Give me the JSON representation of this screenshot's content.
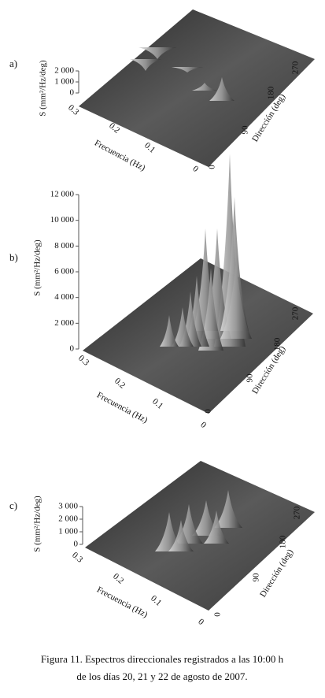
{
  "panels": [
    {
      "label": "a)",
      "z_label": "S (mm²/Hz/deg)",
      "z_ticks": [
        "2 000",
        "1 000",
        "0"
      ],
      "freq_label": "Frecuencia (Hz)",
      "freq_ticks": [
        "0.3",
        "0.2",
        "0.1",
        "0"
      ],
      "dir_label": "Dirección (deg)",
      "dir_ticks": [
        "0",
        "90",
        "180",
        "270"
      ]
    },
    {
      "label": "b)",
      "z_label": "S (mm²/Hz/deg)",
      "z_ticks": [
        "12 000",
        "10 000",
        "8 000",
        "6 000",
        "4 000",
        "2 000",
        "0"
      ],
      "freq_label": "Frecuencia (Hz)",
      "freq_ticks": [
        "0.3",
        "0.2",
        "0.1",
        "0"
      ],
      "dir_label": "Dirección (deg)",
      "dir_ticks": [
        "0",
        "90",
        "180",
        "270"
      ]
    },
    {
      "label": "c)",
      "z_label": "S (mm²/Hz/deg)",
      "z_ticks": [
        "3 000",
        "2 000",
        "1 000",
        "0"
      ],
      "freq_label": "Frecuencia (Hz)",
      "freq_ticks": [
        "0.3",
        "0.2",
        "0.1",
        "0"
      ],
      "dir_label": "Dirección (deg)",
      "dir_ticks": [
        "0",
        "90",
        "180",
        "270"
      ]
    }
  ],
  "caption": [
    "Figura 11. Espectros direccionales registrados a las 10:00 h",
    "de los días 20, 21 y 22 de agosto de 2007."
  ]
}
